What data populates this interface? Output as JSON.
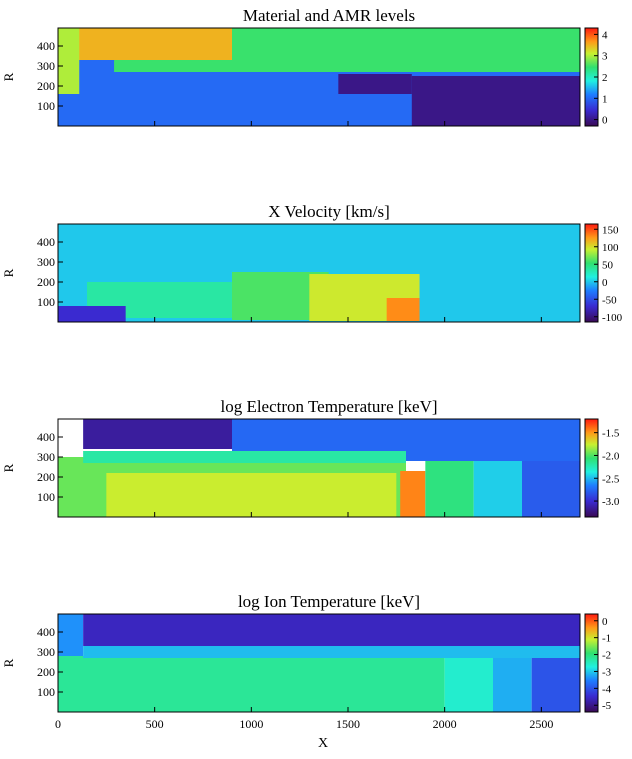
{
  "chart_data": [
    {
      "type": "heatmap",
      "title": "Material and AMR levels",
      "xlabel": "",
      "ylabel": "R",
      "xlim": [
        0,
        2700
      ],
      "ylim": [
        0,
        490
      ],
      "x_ticks": [
        0,
        500,
        1000,
        1500,
        2000,
        2500
      ],
      "y_ticks": [
        100,
        200,
        300,
        400
      ],
      "colorbar": {
        "ticks": [
          0,
          1,
          2,
          3,
          4
        ],
        "tick_labels": [
          "0",
          "1",
          "2",
          "3",
          "4"
        ],
        "range": [
          -0.3,
          4.3
        ]
      },
      "grid": false,
      "regions": [
        {
          "value": 1,
          "x0": 0,
          "x1": 2700,
          "y0": 0,
          "y1": 490
        },
        {
          "value": 2.5,
          "x0": 290,
          "x1": 2700,
          "y0": 270,
          "y1": 490
        },
        {
          "value": 3.5,
          "x0": 100,
          "x1": 900,
          "y0": 330,
          "y1": 490
        },
        {
          "value": 3.0,
          "x0": 0,
          "x1": 110,
          "y0": 160,
          "y1": 490
        },
        {
          "value": 0,
          "x0": 1830,
          "x1": 2700,
          "y0": 0,
          "y1": 250
        },
        {
          "value": 0,
          "x0": 1450,
          "x1": 1830,
          "y0": 160,
          "y1": 260
        }
      ]
    },
    {
      "type": "heatmap",
      "title": "X Velocity [km/s]",
      "xlabel": "",
      "ylabel": "R",
      "xlim": [
        0,
        2700
      ],
      "ylim": [
        0,
        490
      ],
      "x_ticks": [
        0,
        500,
        1000,
        1500,
        2000,
        2500
      ],
      "y_ticks": [
        100,
        200,
        300,
        400
      ],
      "colorbar": {
        "ticks": [
          -100,
          -50,
          0,
          50,
          100,
          150
        ],
        "tick_labels": [
          "-100",
          "-50",
          "0",
          "50",
          "100",
          "150"
        ],
        "range": [
          -115,
          165
        ]
      },
      "grid": false,
      "regions": [
        {
          "value": 0,
          "x0": 0,
          "x1": 2700,
          "y0": 0,
          "y1": 490
        },
        {
          "value": 35,
          "x0": 150,
          "x1": 1000,
          "y0": 20,
          "y1": 200
        },
        {
          "value": 60,
          "x0": 900,
          "x1": 1400,
          "y0": 10,
          "y1": 250
        },
        {
          "value": 95,
          "x0": 1300,
          "x1": 1870,
          "y0": 5,
          "y1": 240
        },
        {
          "value": 130,
          "x0": 1700,
          "x1": 1870,
          "y0": 5,
          "y1": 120
        },
        {
          "value": -70,
          "x0": 0,
          "x1": 350,
          "y0": 0,
          "y1": 80
        }
      ]
    },
    {
      "type": "heatmap",
      "title": "log Electron Temperature [keV]",
      "xlabel": "",
      "ylabel": "R",
      "xlim": [
        0,
        2700
      ],
      "ylim": [
        0,
        490
      ],
      "x_ticks": [
        0,
        500,
        1000,
        1500,
        2000,
        2500
      ],
      "y_ticks": [
        100,
        200,
        300,
        400
      ],
      "colorbar": {
        "ticks": [
          -3.0,
          -2.5,
          -2.0,
          -1.5
        ],
        "tick_labels": [
          "-3.0",
          "-2.5",
          "-2.0",
          "-1.5"
        ],
        "range": [
          -3.35,
          -1.2
        ]
      },
      "grid": false,
      "regions": [
        {
          "value": -1.95,
          "x0": 0,
          "x1": 1800,
          "y0": 0,
          "y1": 300
        },
        {
          "value": -1.75,
          "x0": 250,
          "x1": 1750,
          "y0": 0,
          "y1": 220
        },
        {
          "value": -1.45,
          "x0": 1770,
          "x1": 1900,
          "y0": 0,
          "y1": 230
        },
        {
          "value": -2.1,
          "x0": 1900,
          "x1": 2150,
          "y0": 0,
          "y1": 280
        },
        {
          "value": -2.45,
          "x0": 2150,
          "x1": 2400,
          "y0": 0,
          "y1": 280
        },
        {
          "value": -2.8,
          "x0": 2400,
          "x1": 2700,
          "y0": 0,
          "y1": 280
        },
        {
          "value": -2.75,
          "x0": 900,
          "x1": 2700,
          "y0": 280,
          "y1": 490
        },
        {
          "value": -3.15,
          "x0": 130,
          "x1": 900,
          "y0": 340,
          "y1": 490
        },
        {
          "value": -2.2,
          "x0": 130,
          "x1": 1800,
          "y0": 270,
          "y1": 330
        }
      ]
    },
    {
      "type": "heatmap",
      "title": "log Ion Temperature [keV]",
      "xlabel": "X",
      "ylabel": "R",
      "xlim": [
        0,
        2700
      ],
      "ylim": [
        0,
        490
      ],
      "x_ticks": [
        0,
        500,
        1000,
        1500,
        2000,
        2500
      ],
      "x_tick_labels": [
        "0",
        "500",
        "1000",
        "1500",
        "2000",
        "2500"
      ],
      "y_ticks": [
        100,
        200,
        300,
        400
      ],
      "colorbar": {
        "ticks": [
          -5,
          -4,
          -3,
          -2,
          -1,
          0
        ],
        "tick_labels": [
          "-5",
          "-4",
          "-3",
          "-2",
          "-1",
          "0"
        ],
        "range": [
          -5.4,
          0.4
        ]
      },
      "grid": false,
      "regions": [
        {
          "value": -2.2,
          "x0": 0,
          "x1": 2000,
          "y0": 0,
          "y1": 280
        },
        {
          "value": -2.6,
          "x0": 2000,
          "x1": 2250,
          "y0": 0,
          "y1": 280
        },
        {
          "value": -3.2,
          "x0": 2250,
          "x1": 2450,
          "y0": 0,
          "y1": 280
        },
        {
          "value": -4.0,
          "x0": 2450,
          "x1": 2700,
          "y0": 0,
          "y1": 280
        },
        {
          "value": -3.4,
          "x0": 0,
          "x1": 130,
          "y0": 280,
          "y1": 490
        },
        {
          "value": -3.1,
          "x0": 130,
          "x1": 2700,
          "y0": 270,
          "y1": 330
        },
        {
          "value": -4.6,
          "x0": 130,
          "x1": 2700,
          "y0": 330,
          "y1": 490
        }
      ]
    }
  ]
}
